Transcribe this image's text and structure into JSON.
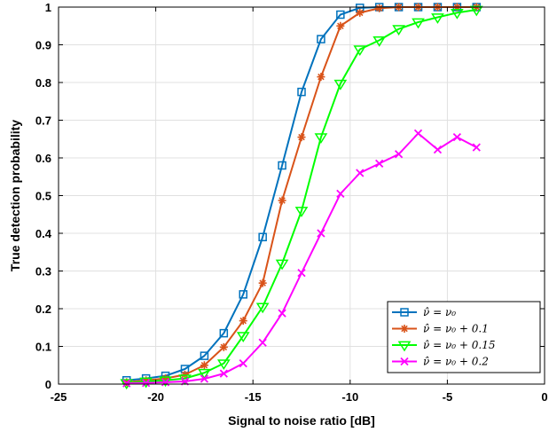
{
  "chart_data": {
    "type": "line",
    "xlabel": "Signal to noise ratio [dB]",
    "ylabel": "True detection probability",
    "xlim": [
      -25,
      0
    ],
    "ylim": [
      0,
      1
    ],
    "xticks": [
      -25,
      -20,
      -15,
      -10,
      -5,
      0
    ],
    "yticks": [
      0,
      0.1,
      0.2,
      0.3,
      0.4,
      0.5,
      0.6,
      0.7,
      0.8,
      0.9,
      1
    ],
    "xtick_labels": [
      "-25",
      "-20",
      "-15",
      "-10",
      "-5",
      "0"
    ],
    "ytick_labels": [
      "0",
      "0.1",
      "0.2",
      "0.3",
      "0.4",
      "0.5",
      "0.6",
      "0.7",
      "0.8",
      "0.9",
      "1"
    ],
    "grid": true,
    "legend_position": "bottom-right",
    "x": [
      -21.5,
      -20.5,
      -19.5,
      -18.5,
      -17.5,
      -16.5,
      -15.5,
      -14.5,
      -13.5,
      -12.5,
      -11.5,
      -10.5,
      -9.5,
      -8.5,
      -7.5,
      -6.5,
      -5.5,
      -4.5,
      -3.5
    ],
    "series": [
      {
        "name": "ν̂ = ν₀",
        "color": "#0072BD",
        "marker": "square",
        "values": [
          0.01,
          0.015,
          0.022,
          0.04,
          0.075,
          0.135,
          0.238,
          0.39,
          0.58,
          0.775,
          0.915,
          0.98,
          0.998,
          1.0,
          1.0,
          1.0,
          1.0,
          1.0,
          1.0
        ]
      },
      {
        "name": "ν̂ = ν₀ + 0.1",
        "color": "#D95319",
        "marker": "asterisk",
        "values": [
          0.005,
          0.01,
          0.015,
          0.025,
          0.05,
          0.098,
          0.168,
          0.268,
          0.487,
          0.655,
          0.815,
          0.95,
          0.985,
          0.997,
          1.0,
          1.0,
          1.0,
          1.0,
          1.0
        ]
      },
      {
        "name": "ν̂ = ν₀ + 0.15",
        "color": "#00FF00",
        "marker": "triangle-down",
        "values": [
          0.003,
          0.007,
          0.01,
          0.015,
          0.03,
          0.055,
          0.128,
          0.205,
          0.32,
          0.46,
          0.655,
          0.797,
          0.888,
          0.912,
          0.942,
          0.96,
          0.973,
          0.985,
          0.993
        ]
      },
      {
        "name": "ν̂ = ν₀ + 0.2",
        "color": "#FF00FF",
        "marker": "x",
        "values": [
          0.002,
          0.003,
          0.005,
          0.007,
          0.014,
          0.028,
          0.055,
          0.11,
          0.188,
          0.295,
          0.4,
          0.505,
          0.56,
          0.585,
          0.61,
          0.665,
          0.622,
          0.655,
          0.628
        ]
      }
    ]
  }
}
